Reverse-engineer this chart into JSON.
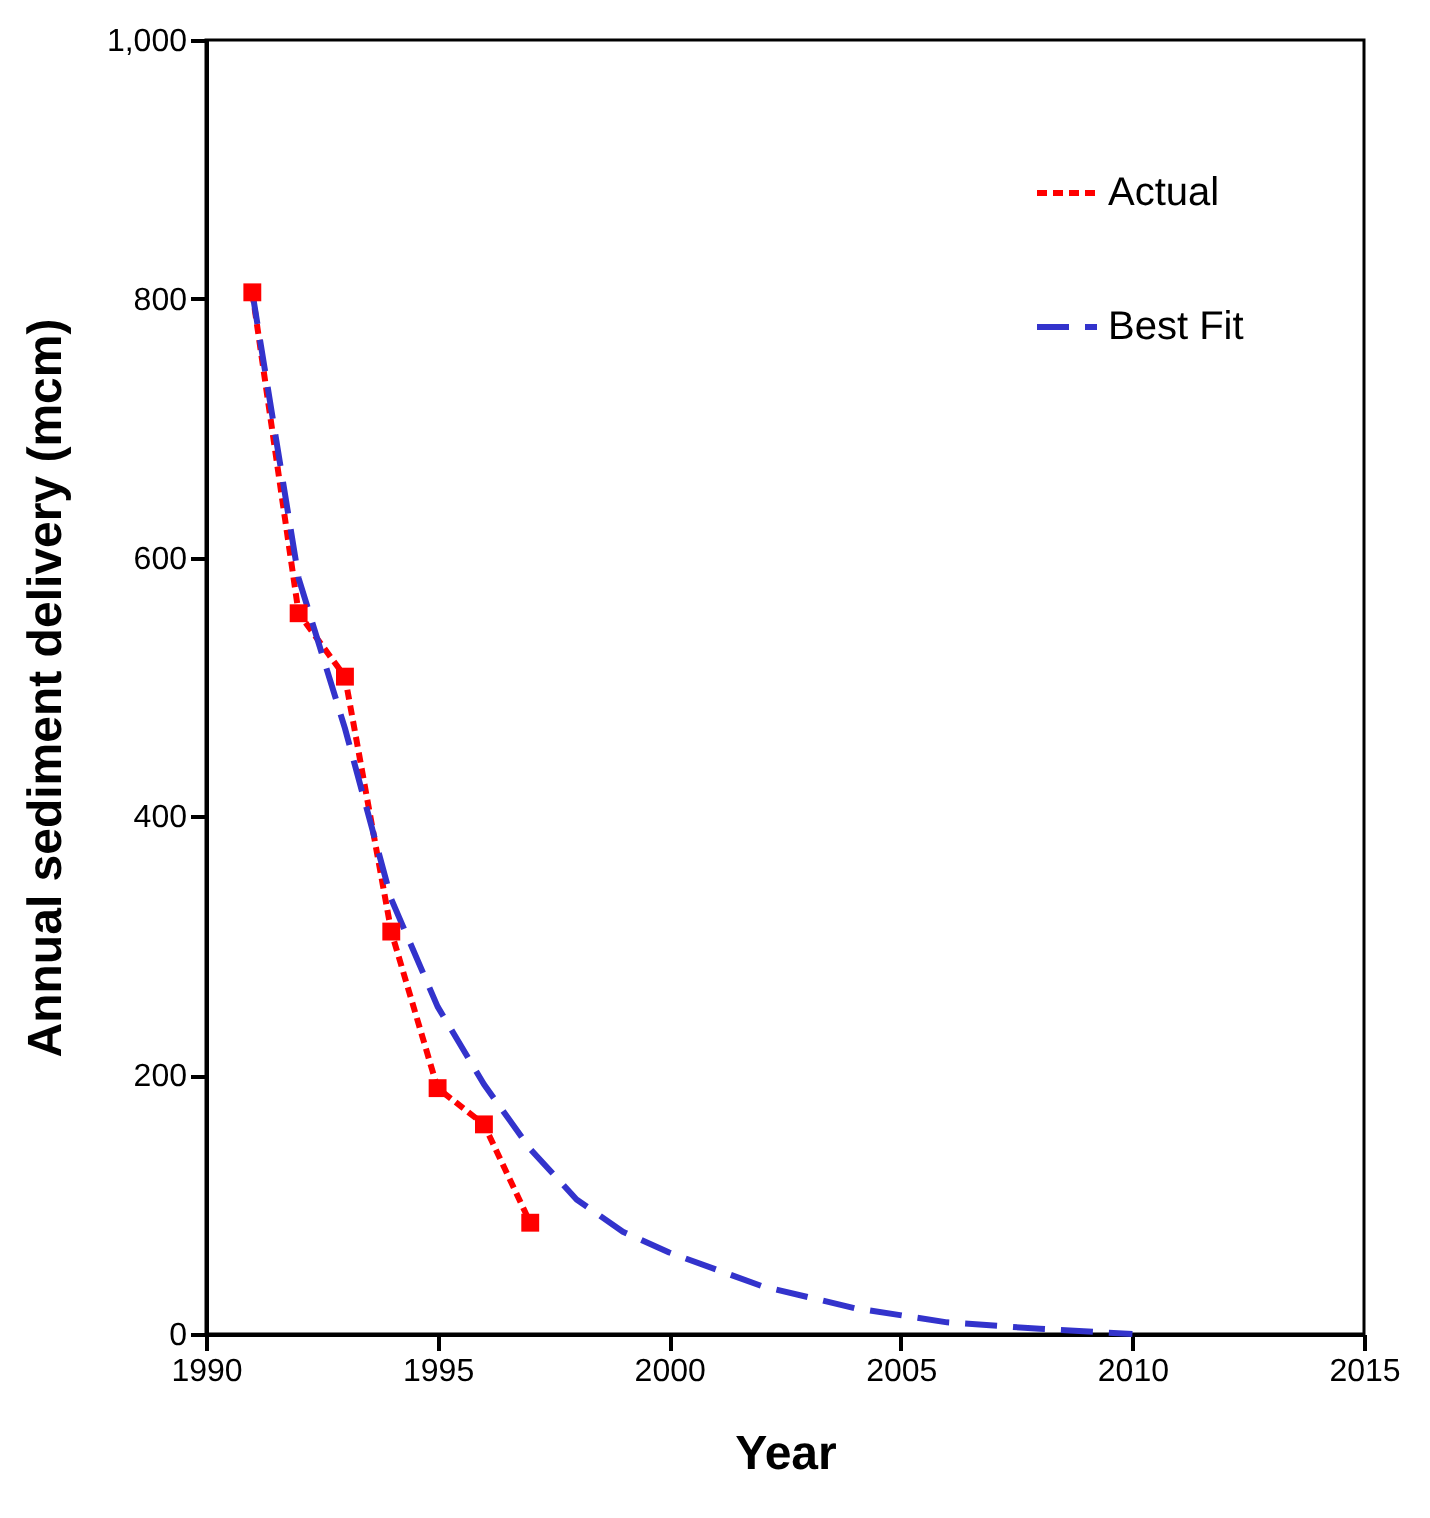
{
  "chart_data": {
    "type": "line",
    "xlabel": "Year",
    "ylabel": "Annual sediment delivery (mcm)",
    "xlim": [
      1990,
      2015
    ],
    "xticks": [
      1990,
      1995,
      2000,
      2005,
      2010,
      2015
    ],
    "ylim": [
      0,
      1000
    ],
    "yticks": [
      0,
      200,
      400,
      600,
      800,
      {
        "value": 1000,
        "label": "1,000"
      }
    ],
    "legend": "top right",
    "grid": false,
    "series": [
      {
        "name": "Actual",
        "color": "#ff0000",
        "marker": "square",
        "line_style": "dotted",
        "x": [
          1991,
          1992,
          1993,
          1994,
          1995,
          1996,
          1997
        ],
        "values": [
          805,
          557,
          508,
          311,
          190,
          162,
          86
        ]
      },
      {
        "name": "Best Fit",
        "color": "#3333cc",
        "marker": "none",
        "line_style": "dashed",
        "x": [
          1991,
          1992,
          1993,
          1994,
          1995,
          1996,
          1997,
          1998,
          1999,
          2000,
          2002,
          2004,
          2006,
          2008,
          2010
        ],
        "values": [
          805,
          584,
          468,
          336,
          253,
          193,
          143,
          104,
          79,
          63,
          37,
          20,
          9,
          4,
          0
        ]
      }
    ]
  }
}
